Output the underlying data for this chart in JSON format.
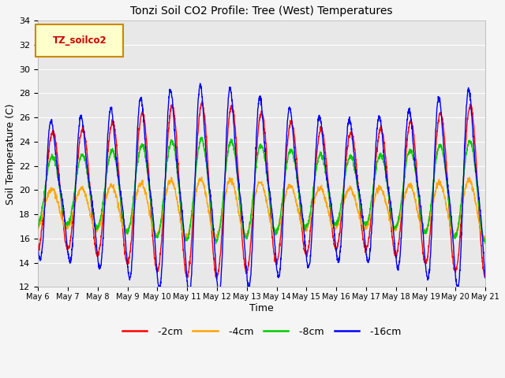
{
  "title": "Tonzi Soil CO2 Profile: Tree (West) Temperatures",
  "xlabel": "Time",
  "ylabel": "Soil Temperature (C)",
  "ylim": [
    12,
    34
  ],
  "yticks": [
    12,
    14,
    16,
    18,
    20,
    22,
    24,
    26,
    28,
    30,
    32,
    34
  ],
  "colors": {
    "-2cm": "#ff0000",
    "-4cm": "#ffa500",
    "-8cm": "#00cc00",
    "-16cm": "#0000ff"
  },
  "legend_label": "TZ_soilco2",
  "legend_box_facecolor": "#ffffcc",
  "legend_box_edgecolor": "#cc8800",
  "legend_text_color": "#cc0000",
  "plot_bg_color": "#e8e8e8",
  "fig_bg_color": "#f5f5f5",
  "days": 15,
  "points_per_day": 144,
  "start_day": 6,
  "baselines": {
    "-2cm": 20.0,
    "-4cm": 18.5,
    "-8cm": 20.0,
    "-16cm": 20.0
  },
  "amplitudes": {
    "-2cm": 6.0,
    "-4cm": 2.0,
    "-8cm": 3.5,
    "-16cm": 7.5
  },
  "phase_shifts": {
    "-2cm": 0.0,
    "-4cm": 0.25,
    "-8cm": 0.1,
    "-16cm": -0.05
  },
  "sharpness": {
    "-2cm": 1.0,
    "-4cm": 1.0,
    "-8cm": 1.0,
    "-16cm": 3.0
  },
  "line_width": 1.0,
  "grid_color": "#ffffff",
  "grid_lw": 0.8
}
